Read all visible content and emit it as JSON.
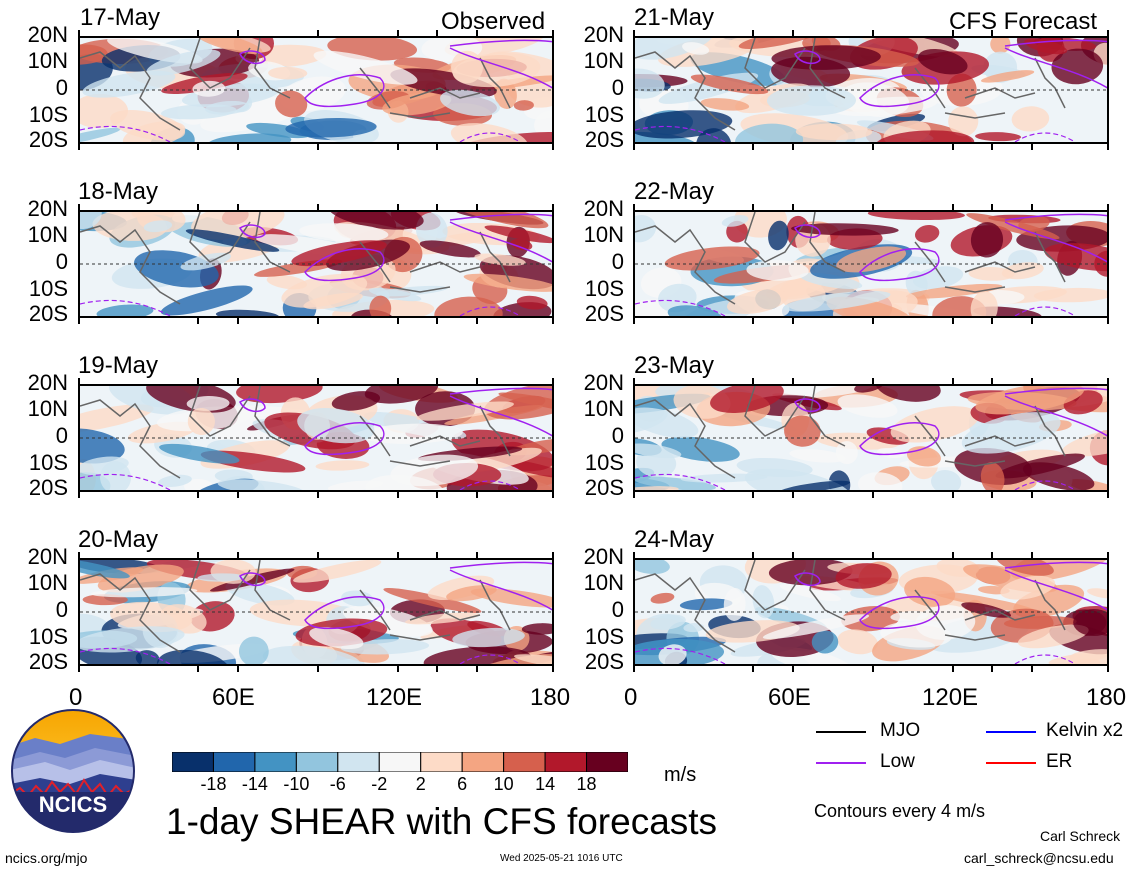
{
  "left_column": {
    "header": "Observed",
    "dates": [
      "17-May",
      "18-May",
      "19-May",
      "20-May"
    ]
  },
  "right_column": {
    "header": "CFS Forecast",
    "dates": [
      "21-May",
      "22-May",
      "23-May",
      "24-May"
    ]
  },
  "lat_labels": [
    "20N",
    "10N",
    "0",
    "10S",
    "20S"
  ],
  "lon_labels": [
    "0",
    "60E",
    "120E",
    "180"
  ],
  "colorbar": {
    "labels": [
      "-18",
      "-14",
      "-10",
      "-6",
      "-2",
      "2",
      "6",
      "10",
      "14",
      "18"
    ],
    "colors": [
      "#08306b",
      "#2166ac",
      "#4393c3",
      "#92c5de",
      "#d1e5f0",
      "#f7f7f7",
      "#fddbc7",
      "#f4a582",
      "#d6604d",
      "#b2182b",
      "#67001f"
    ],
    "units": "m/s"
  },
  "legend": {
    "items": [
      {
        "label": "MJO",
        "color": "#000000"
      },
      {
        "label": "Kelvin x2",
        "color": "#0000ff"
      },
      {
        "label": "Low",
        "color": "#a020f0"
      },
      {
        "label": "ER",
        "color": "#ff0000"
      }
    ],
    "contour_note": "Contours every 4 m/s"
  },
  "main_title": "1-day SHEAR with CFS forecasts",
  "logo_text": "NCICS",
  "footer": {
    "left": "ncics.org/mjo",
    "center": "Wed 2025-05-21 1016 UTC",
    "author": "Carl Schreck",
    "email": "carl_schreck@ncsu.edu"
  }
}
